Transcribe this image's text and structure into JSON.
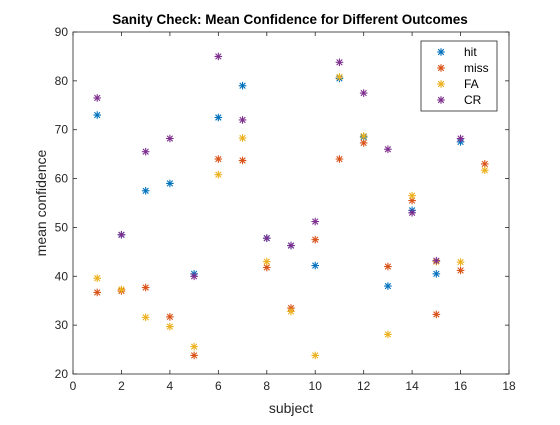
{
  "chart_data": {
    "type": "scatter",
    "title": "Sanity Check: Mean Confidence for Different Outcomes",
    "xlabel": "subject",
    "ylabel": "mean confidence",
    "xlim": [
      0,
      18
    ],
    "ylim": [
      20,
      90
    ],
    "xticks": [
      0,
      2,
      4,
      6,
      8,
      10,
      12,
      14,
      16,
      18
    ],
    "yticks": [
      20,
      30,
      40,
      50,
      60,
      70,
      80,
      90
    ],
    "marker": "asterisk",
    "grid": false,
    "legend_position": "top-right",
    "series": [
      {
        "name": "hit",
        "color": "#0072BD",
        "points": [
          [
            1,
            73
          ],
          [
            2,
            48.5
          ],
          [
            3,
            57.5
          ],
          [
            4,
            59
          ],
          [
            5,
            40.5
          ],
          [
            6,
            72.5
          ],
          [
            7,
            79
          ],
          [
            8,
            47.8
          ],
          [
            9,
            46.3
          ],
          [
            10,
            42.2
          ],
          [
            11,
            80.5
          ],
          [
            12,
            68.5
          ],
          [
            13,
            38
          ],
          [
            14,
            53.5
          ],
          [
            15,
            40.5
          ],
          [
            16,
            67.5
          ]
        ]
      },
      {
        "name": "miss",
        "color": "#D95319",
        "points": [
          [
            1,
            36.7
          ],
          [
            2,
            37
          ],
          [
            3,
            37.7
          ],
          [
            4,
            31.7
          ],
          [
            5,
            23.8
          ],
          [
            6,
            64
          ],
          [
            7,
            63.7
          ],
          [
            8,
            41.8
          ],
          [
            9,
            33.5
          ],
          [
            10,
            47.5
          ],
          [
            11,
            64
          ],
          [
            12,
            67.3
          ],
          [
            13,
            42
          ],
          [
            14,
            55.5
          ],
          [
            15,
            32.2
          ],
          [
            16,
            41.2
          ],
          [
            17,
            63
          ]
        ]
      },
      {
        "name": "FA",
        "color": "#EDB120",
        "points": [
          [
            1,
            39.6
          ],
          [
            2,
            37.3
          ],
          [
            3,
            31.6
          ],
          [
            4,
            29.7
          ],
          [
            5,
            25.6
          ],
          [
            6,
            60.8
          ],
          [
            7,
            68.3
          ],
          [
            8,
            43
          ],
          [
            9,
            32.8
          ],
          [
            10,
            23.8
          ],
          [
            11,
            80.8
          ],
          [
            12,
            68.7
          ],
          [
            13,
            28.1
          ],
          [
            14,
            56.5
          ],
          [
            15,
            43
          ],
          [
            16,
            42.9
          ],
          [
            17,
            61.7
          ]
        ]
      },
      {
        "name": "CR",
        "color": "#7E2F8E",
        "points": [
          [
            1,
            76.5
          ],
          [
            2,
            48.5
          ],
          [
            3,
            65.5
          ],
          [
            4,
            68.2
          ],
          [
            5,
            40
          ],
          [
            6,
            85
          ],
          [
            7,
            72
          ],
          [
            8,
            47.8
          ],
          [
            9,
            46.3
          ],
          [
            10,
            51.2
          ],
          [
            11,
            83.8
          ],
          [
            12,
            77.5
          ],
          [
            13,
            66
          ],
          [
            14,
            53
          ],
          [
            15,
            43.2
          ],
          [
            16,
            68.2
          ]
        ]
      }
    ]
  }
}
